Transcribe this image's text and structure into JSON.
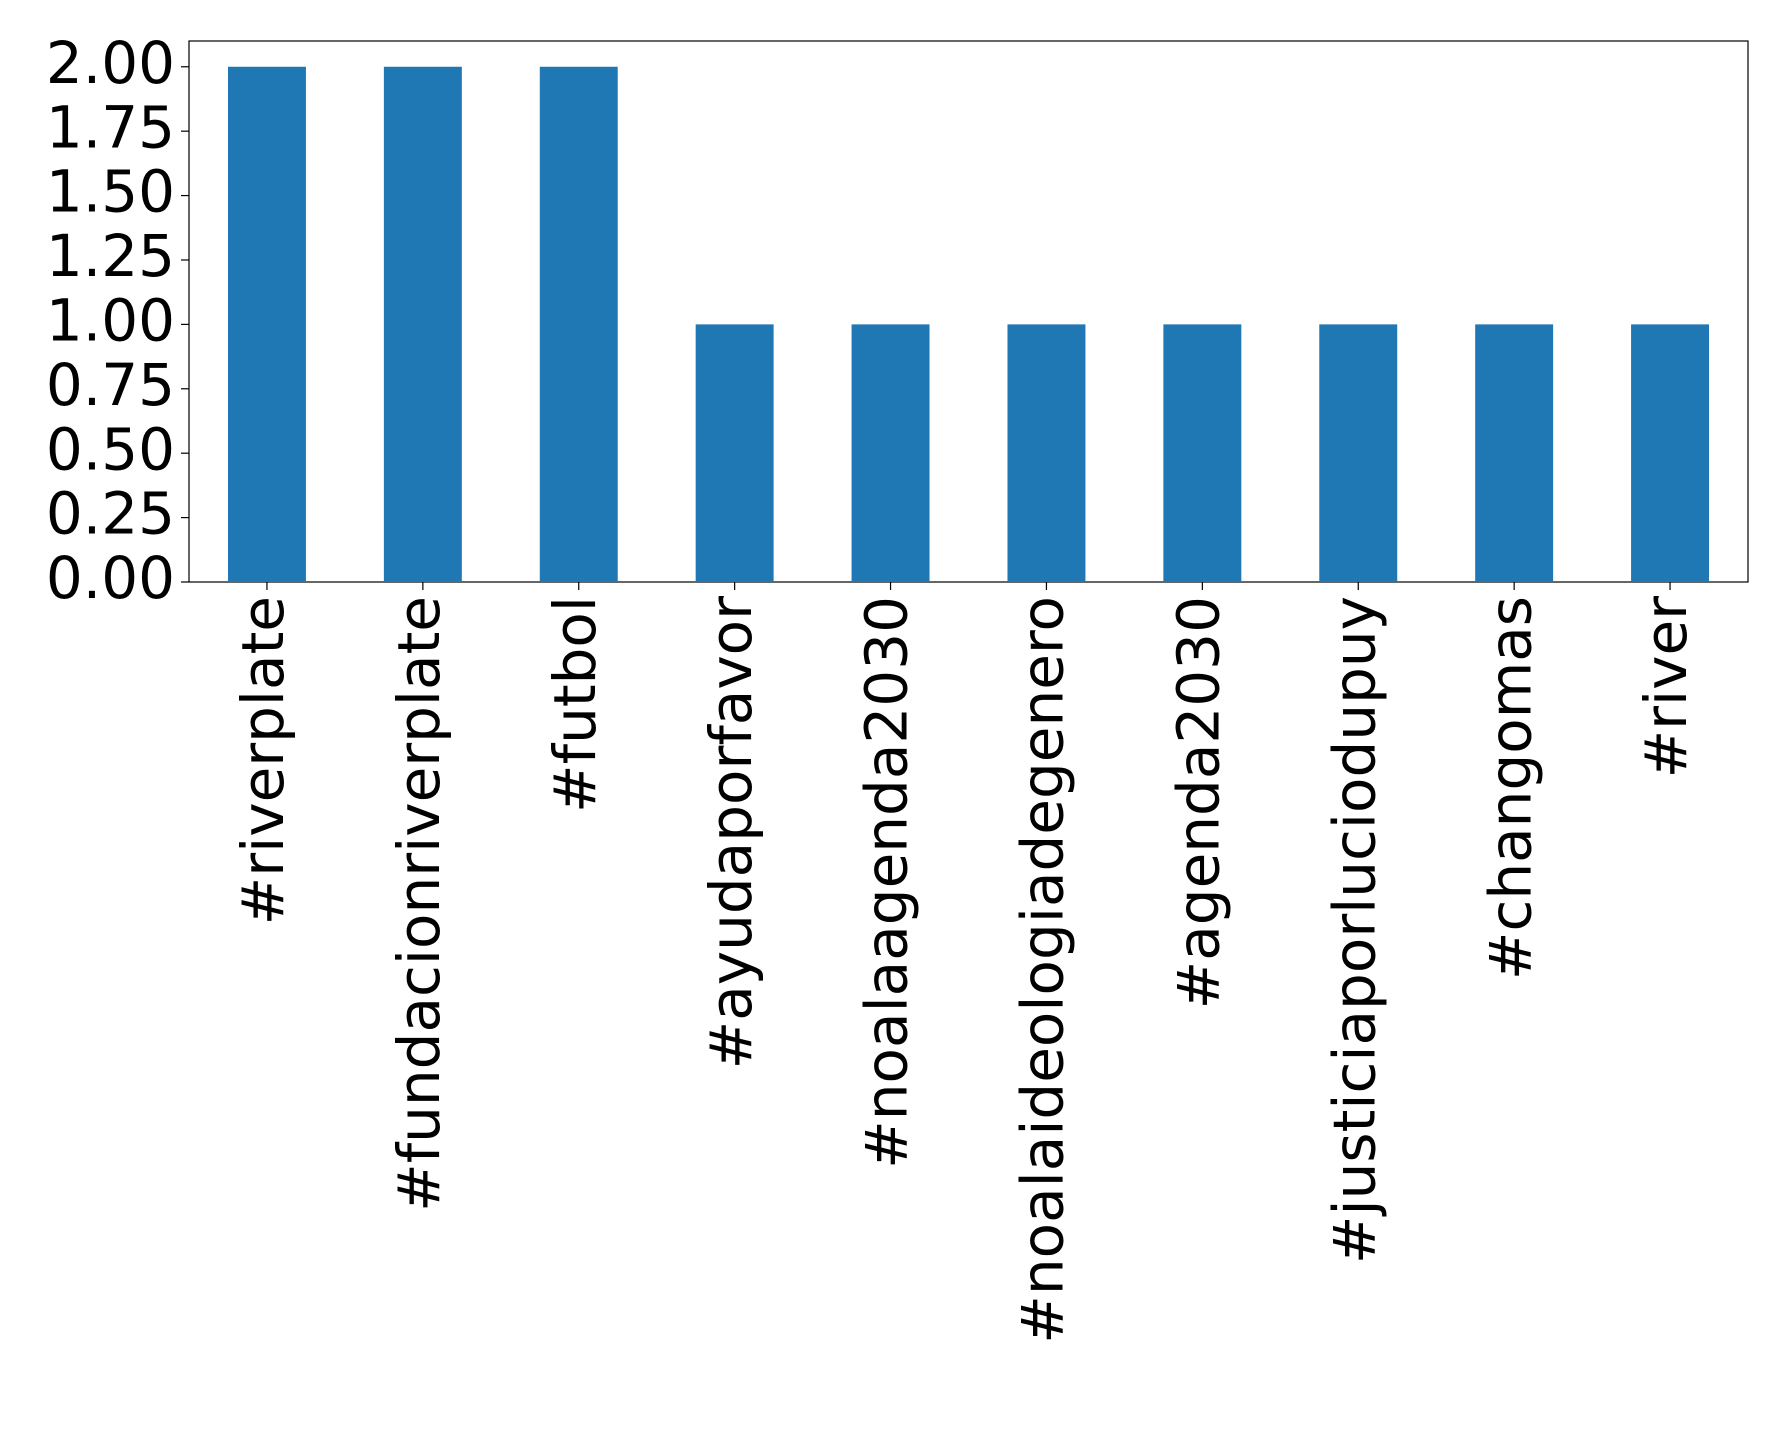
{
  "chart_data": {
    "type": "bar",
    "categories": [
      "#riverplate",
      "#fundacionriverplate",
      "#futbol",
      "#ayudaporfavor",
      "#noalaagenda2030",
      "#noalaideologiadegenero",
      "#agenda2030",
      "#justiciaporluciodupuy",
      "#changomas",
      "#river"
    ],
    "values": [
      2,
      2,
      2,
      1,
      1,
      1,
      1,
      1,
      1,
      1
    ],
    "color": "#1f77b4",
    "ylim": [
      0,
      2.1
    ],
    "yticks": [
      {
        "value": 0,
        "label": "0.00"
      },
      0.25,
      {
        "value": 0.5,
        "label": "0.50"
      },
      0.75,
      {
        "value": 1,
        "label": "1.00"
      },
      1.25,
      {
        "value": 1.5,
        "label": "1.50"
      },
      1.75,
      {
        "value": 2,
        "label": "2.00"
      }
    ],
    "grid": false
  }
}
